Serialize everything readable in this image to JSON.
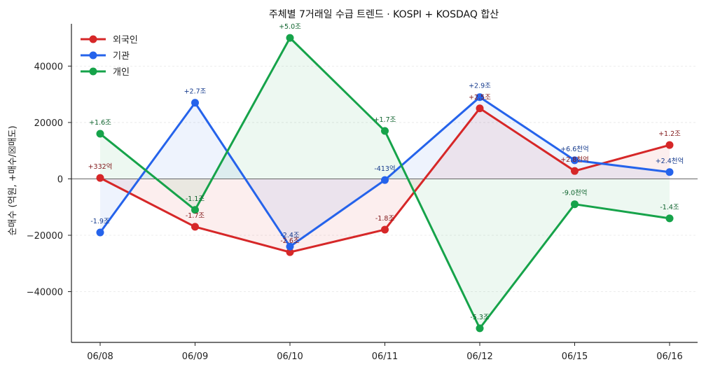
{
  "chart_data": {
    "type": "line",
    "title": "주체별 7거래일 수급 트렌드 · KOSPI + KOSDAQ 합산",
    "ylabel": "순매수 (억원, +매수/☒매도)",
    "xlabel": "",
    "categories": [
      "06/08",
      "06/09",
      "06/10",
      "06/11",
      "06/12",
      "06/15",
      "06/16"
    ],
    "ylim": [
      -58000,
      55000
    ],
    "yticks": [
      -40000,
      -20000,
      0,
      20000,
      40000
    ],
    "grid": "y",
    "legend": "top-left",
    "series": [
      {
        "name": "외국인",
        "color": "#d62728",
        "values": [
          332,
          -17000,
          -26000,
          -18000,
          25000,
          2800,
          12000
        ],
        "labels": [
          "+332억",
          "-1.7조",
          "-2.6조",
          "-1.8조",
          "+2.5조",
          "+2.8천억",
          "+1.2조"
        ]
      },
      {
        "name": "기관",
        "color": "#2563eb",
        "values": [
          -19000,
          27000,
          -24000,
          -413,
          29000,
          6600,
          2400
        ],
        "labels": [
          "-1.9조",
          "+2.7조",
          "-2.4조",
          "-413억",
          "+2.9조",
          "+6.6천억",
          "+2.4천억"
        ]
      },
      {
        "name": "개인",
        "color": "#16a34a",
        "values": [
          16000,
          -11000,
          50000,
          17000,
          -53000,
          -9000,
          -14000
        ],
        "labels": [
          "+1.6조",
          "-1.1조",
          "+5.0조",
          "+1.7조",
          "-5.3조",
          "-9.0천억",
          "-1.4조"
        ]
      }
    ]
  }
}
